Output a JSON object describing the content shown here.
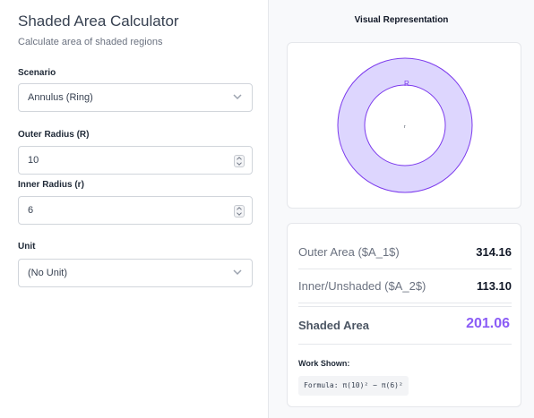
{
  "header": {
    "title": "Shaded Area Calculator",
    "subtitle": "Calculate area of shaded regions"
  },
  "form": {
    "scenario": {
      "label": "Scenario",
      "value": "Annulus (Ring)"
    },
    "outer_radius": {
      "label": "Outer Radius (R)",
      "value": "10"
    },
    "inner_radius": {
      "label": "Inner Radius (r)",
      "value": "6"
    },
    "unit": {
      "label": "Unit",
      "value": "(No Unit)"
    }
  },
  "visual": {
    "title": "Visual Representation",
    "outer_label": "R",
    "inner_label": "r",
    "colors": {
      "shaded_fill": "#ddd6fe",
      "shaded_stroke": "#7c3aed",
      "inner_fill": "#ffffff"
    }
  },
  "results": {
    "outer_area": {
      "label": "Outer Area ($A_1$)",
      "value": "314.16"
    },
    "inner_area": {
      "label": "Inner/Unshaded ($A_2$)",
      "value": "113.10"
    },
    "shaded_area": {
      "label": "Shaded Area",
      "value": "201.06"
    },
    "work_label": "Work Shown:",
    "formula": "Formula: π(10)² − π(6)²",
    "accent_color": "#8b5cf6"
  }
}
